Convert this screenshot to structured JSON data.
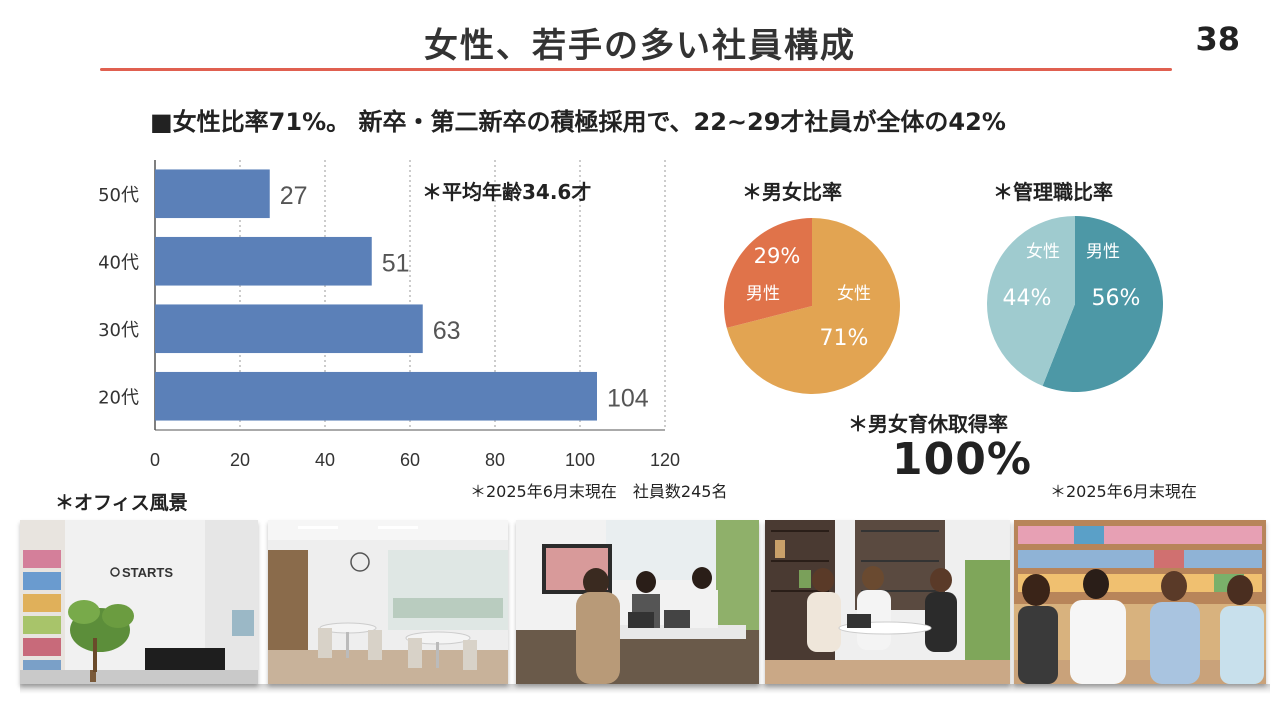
{
  "page": {
    "title": "女性、若手の多い社員構成",
    "page_number": "38",
    "headline": "■女性比率71%。 新卒・第二新卒の積極採用で、22~29才社員が全体の42%"
  },
  "age_chart": {
    "annotation": "＊平均年齢34.6才",
    "note": "＊2025年6月末現在　社員数245名",
    "bar_color": "#5b80b8"
  },
  "gender_ratio": {
    "title": "＊男女比率",
    "male_label": "男性",
    "female_label": "女性",
    "male_pct": "29%",
    "female_pct": "71%",
    "male_color": "#e0734a",
    "female_color": "#e2a452"
  },
  "manager_ratio": {
    "title": "＊管理職比率",
    "female_label": "女性",
    "male_label": "男性",
    "female_pct": "44%",
    "male_pct": "56%",
    "female_color": "#9fcbcf",
    "male_color": "#4d98a6"
  },
  "parental_leave": {
    "label": "＊男女育休取得率",
    "value": "100%",
    "note": "＊2025年6月末現在"
  },
  "office": {
    "label": "＊オフィス風景",
    "sign_text": "STARTS"
  },
  "chart_data": [
    {
      "type": "bar",
      "orientation": "horizontal",
      "categories": [
        "50代",
        "40代",
        "30代",
        "20代"
      ],
      "values": [
        27,
        51,
        63,
        104
      ],
      "xlim": [
        0,
        120
      ],
      "xticks": [
        0,
        20,
        40,
        60,
        80,
        100,
        120
      ],
      "grid": "vertical dotted",
      "annotation": "＊平均年齢34.6才",
      "note": "＊2025年6月末現在　社員数245名"
    },
    {
      "type": "pie",
      "title": "＊男女比率",
      "slices": [
        {
          "label": "女性",
          "value": 71
        },
        {
          "label": "男性",
          "value": 29
        }
      ]
    },
    {
      "type": "pie",
      "title": "＊管理職比率",
      "slices": [
        {
          "label": "男性",
          "value": 56
        },
        {
          "label": "女性",
          "value": 44
        }
      ]
    }
  ]
}
